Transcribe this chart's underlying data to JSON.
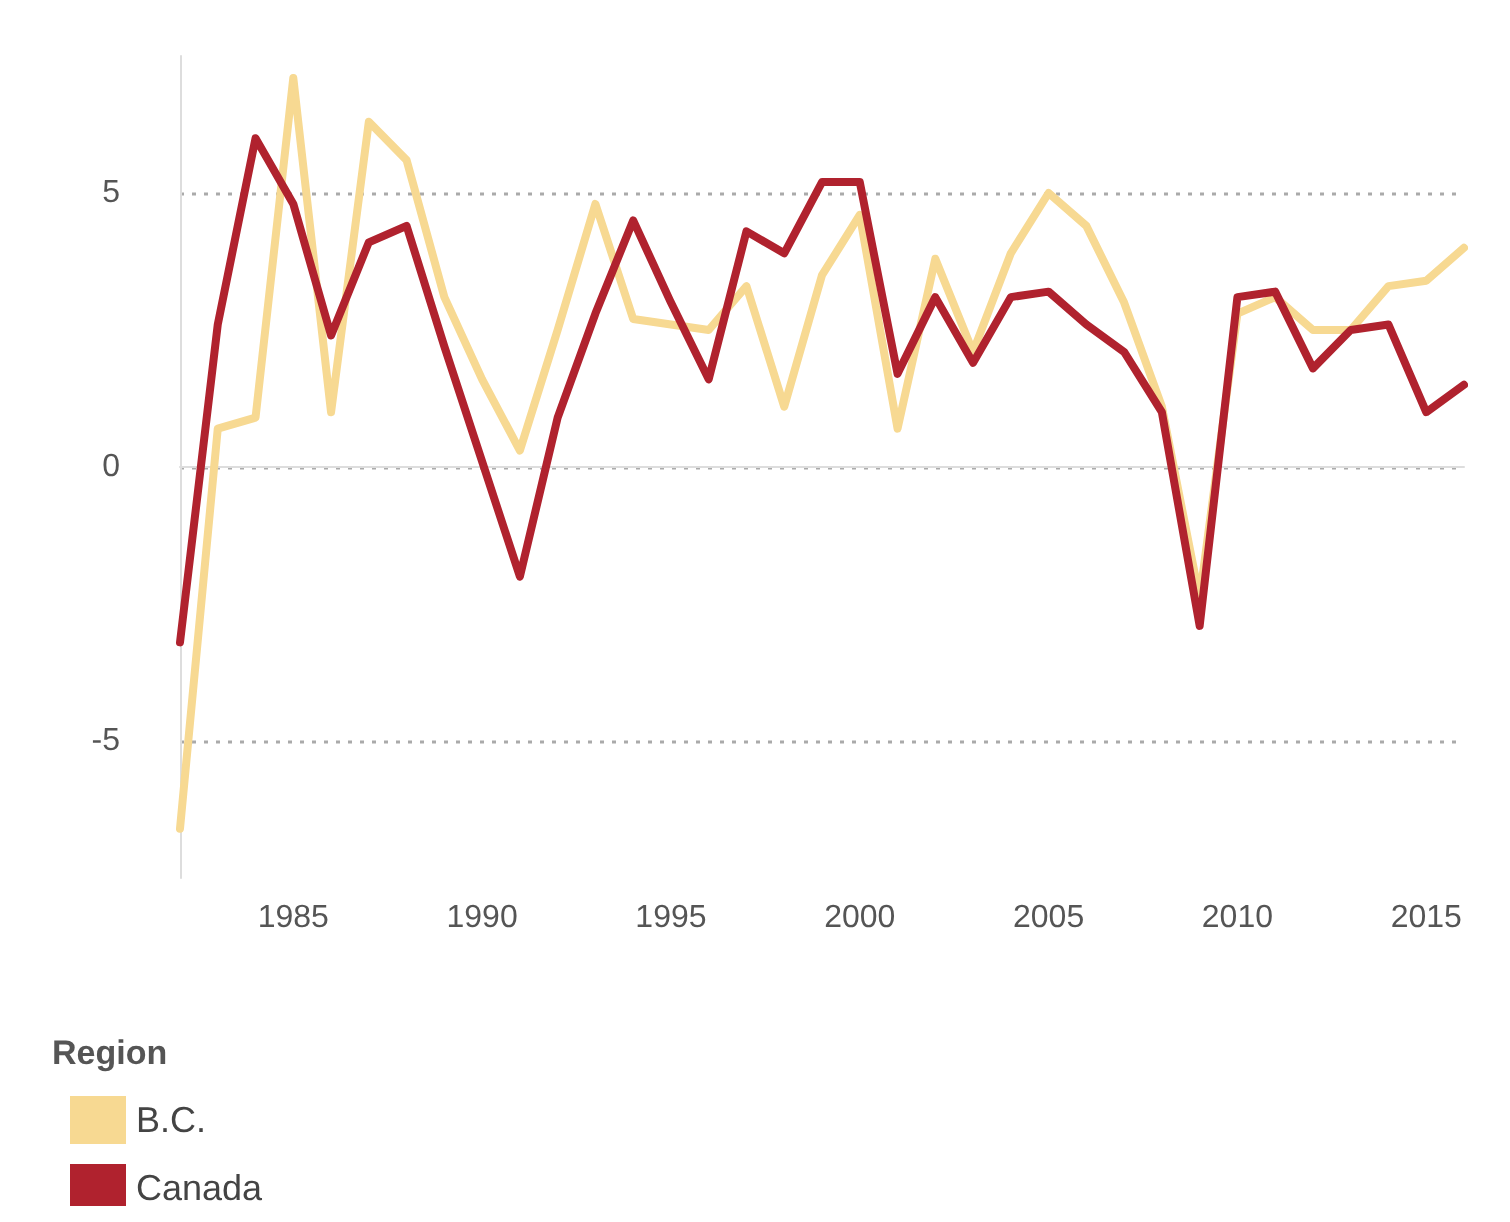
{
  "chart_data": {
    "type": "line",
    "legend_title": "Region",
    "x": [
      1982,
      1983,
      1984,
      1985,
      1986,
      1987,
      1988,
      1989,
      1990,
      1991,
      1992,
      1993,
      1994,
      1995,
      1996,
      1997,
      1998,
      1999,
      2000,
      2001,
      2002,
      2003,
      2004,
      2005,
      2006,
      2007,
      2008,
      2009,
      2010,
      2011,
      2012,
      2013,
      2014,
      2015,
      2016
    ],
    "series": [
      {
        "name": "B.C.",
        "color": "#f7d992",
        "values": [
          -6.6,
          0.7,
          0.9,
          7.1,
          1.0,
          6.3,
          5.6,
          3.1,
          1.6,
          0.3,
          2.5,
          4.8,
          2.7,
          2.6,
          2.5,
          3.3,
          1.1,
          3.5,
          4.6,
          0.7,
          3.8,
          2.1,
          3.9,
          5.0,
          4.4,
          3.0,
          1.1,
          -2.4,
          2.8,
          3.1,
          2.5,
          2.5,
          3.3,
          3.4,
          4.0
        ]
      },
      {
        "name": "Canada",
        "color": "#b0222e",
        "values": [
          -3.2,
          2.6,
          6.0,
          4.8,
          2.4,
          4.1,
          4.4,
          2.2,
          0.1,
          -2.0,
          0.9,
          2.8,
          4.5,
          3.0,
          1.6,
          4.3,
          3.9,
          5.2,
          5.2,
          1.7,
          3.1,
          1.9,
          3.1,
          3.2,
          2.6,
          2.1,
          1.0,
          -2.9,
          3.1,
          3.2,
          1.8,
          2.5,
          2.6,
          1.0,
          1.5
        ]
      }
    ],
    "xlim": [
      1982,
      2016
    ],
    "xticks": [
      1985,
      1990,
      1995,
      2000,
      2005,
      2010,
      2015
    ],
    "ylim": [
      -7.5,
      7.5
    ],
    "yticks": [
      -5,
      0,
      5
    ],
    "grid": "y",
    "legend": "bottom left",
    "marker": "none",
    "line_style": "solid"
  }
}
